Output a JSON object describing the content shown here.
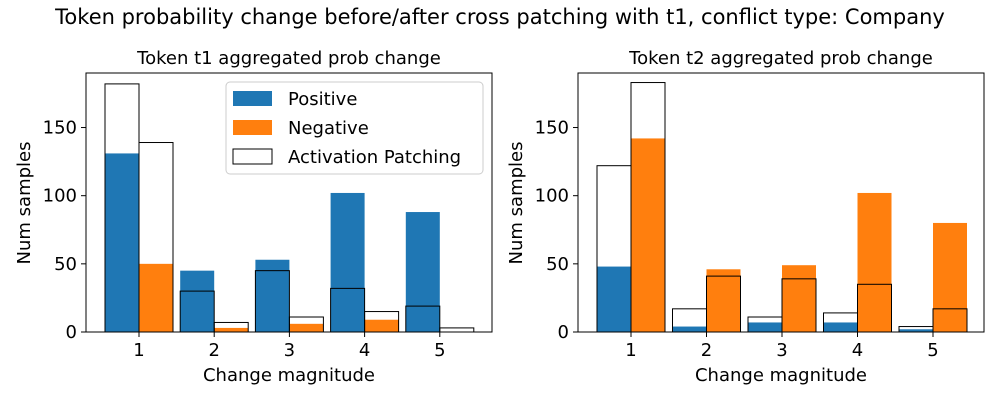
{
  "figure": {
    "suptitle": "Token probability change before/after cross patching with t1, conflict type: Company",
    "colors": {
      "positive": "#1f77b4",
      "negative": "#ff7f0e",
      "patching_edge": "#000000",
      "patching_fill": "none"
    }
  },
  "chart_data": [
    {
      "type": "bar",
      "title": "Token t1 aggregated prob change",
      "xlabel": "Change magnitude",
      "ylabel": "Num samples",
      "categories": [
        "1",
        "2",
        "3",
        "4",
        "5"
      ],
      "ylim": [
        0,
        190
      ],
      "yticks": [
        0,
        50,
        100,
        150
      ],
      "series": [
        {
          "name": "Positive",
          "values": [
            131,
            45,
            53,
            102,
            88
          ]
        },
        {
          "name": "Negative",
          "values": [
            50,
            3,
            6,
            9,
            0
          ]
        },
        {
          "name": "Activation Patching (positive)",
          "values": [
            182,
            30,
            45,
            32,
            19
          ]
        },
        {
          "name": "Activation Patching (negative)",
          "values": [
            139,
            7,
            11,
            15,
            3
          ]
        }
      ],
      "legend": {
        "placement": "top-right",
        "entries": [
          "Positive",
          "Negative",
          "Activation Patching"
        ]
      }
    },
    {
      "type": "bar",
      "title": "Token t2 aggregated prob change",
      "xlabel": "Change magnitude",
      "ylabel": "Num samples",
      "categories": [
        "1",
        "2",
        "3",
        "4",
        "5"
      ],
      "ylim": [
        0,
        190
      ],
      "yticks": [
        0,
        50,
        100,
        150
      ],
      "series": [
        {
          "name": "Positive",
          "values": [
            48,
            4,
            7,
            7,
            2
          ]
        },
        {
          "name": "Negative",
          "values": [
            142,
            46,
            49,
            102,
            80
          ]
        },
        {
          "name": "Activation Patching (positive)",
          "values": [
            122,
            17,
            11,
            14,
            4
          ]
        },
        {
          "name": "Activation Patching (negative)",
          "values": [
            183,
            41,
            39,
            35,
            17
          ]
        }
      ]
    }
  ]
}
